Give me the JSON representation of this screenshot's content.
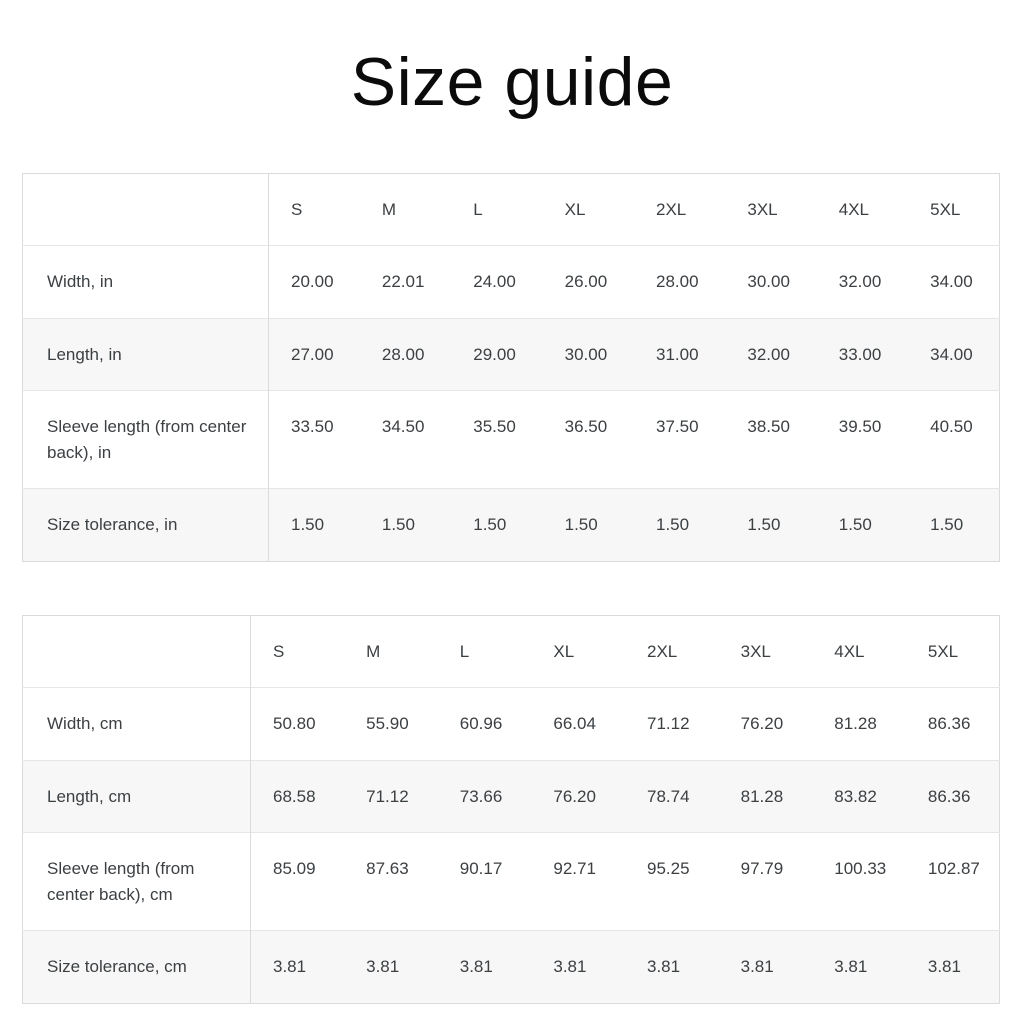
{
  "page": {
    "title": "Size guide"
  },
  "colors": {
    "background": "#ffffff",
    "table_border": "#dbdbdb",
    "row_divider": "#e6e6e6",
    "stripe_row_background": "#f7f7f7",
    "text": "#3c4043",
    "title_text": "#0b0b0b"
  },
  "tables": [
    {
      "name": "size-table-inches",
      "unit": "in",
      "columns": [
        "S",
        "M",
        "L",
        "XL",
        "2XL",
        "3XL",
        "4XL",
        "5XL"
      ],
      "rows": [
        {
          "label": "Width, in",
          "values": [
            "20.00",
            "22.01",
            "24.00",
            "26.00",
            "28.00",
            "30.00",
            "32.00",
            "34.00"
          ]
        },
        {
          "label": "Length, in",
          "values": [
            "27.00",
            "28.00",
            "29.00",
            "30.00",
            "31.00",
            "32.00",
            "33.00",
            "34.00"
          ]
        },
        {
          "label": "Sleeve length (from center back), in",
          "values": [
            "33.50",
            "34.50",
            "35.50",
            "36.50",
            "37.50",
            "38.50",
            "39.50",
            "40.50"
          ]
        },
        {
          "label": "Size tolerance, in",
          "values": [
            "1.50",
            "1.50",
            "1.50",
            "1.50",
            "1.50",
            "1.50",
            "1.50",
            "1.50"
          ]
        }
      ]
    },
    {
      "name": "size-table-centimeters",
      "unit": "cm",
      "columns": [
        "S",
        "M",
        "L",
        "XL",
        "2XL",
        "3XL",
        "4XL",
        "5XL"
      ],
      "rows": [
        {
          "label": "Width, cm",
          "values": [
            "50.80",
            "55.90",
            "60.96",
            "66.04",
            "71.12",
            "76.20",
            "81.28",
            "86.36"
          ]
        },
        {
          "label": "Length, cm",
          "values": [
            "68.58",
            "71.12",
            "73.66",
            "76.20",
            "78.74",
            "81.28",
            "83.82",
            "86.36"
          ]
        },
        {
          "label": "Sleeve length (from center back), cm",
          "values": [
            "85.09",
            "87.63",
            "90.17",
            "92.71",
            "95.25",
            "97.79",
            "100.33",
            "102.87"
          ]
        },
        {
          "label": "Size tolerance, cm",
          "values": [
            "3.81",
            "3.81",
            "3.81",
            "3.81",
            "3.81",
            "3.81",
            "3.81",
            "3.81"
          ]
        }
      ]
    }
  ]
}
